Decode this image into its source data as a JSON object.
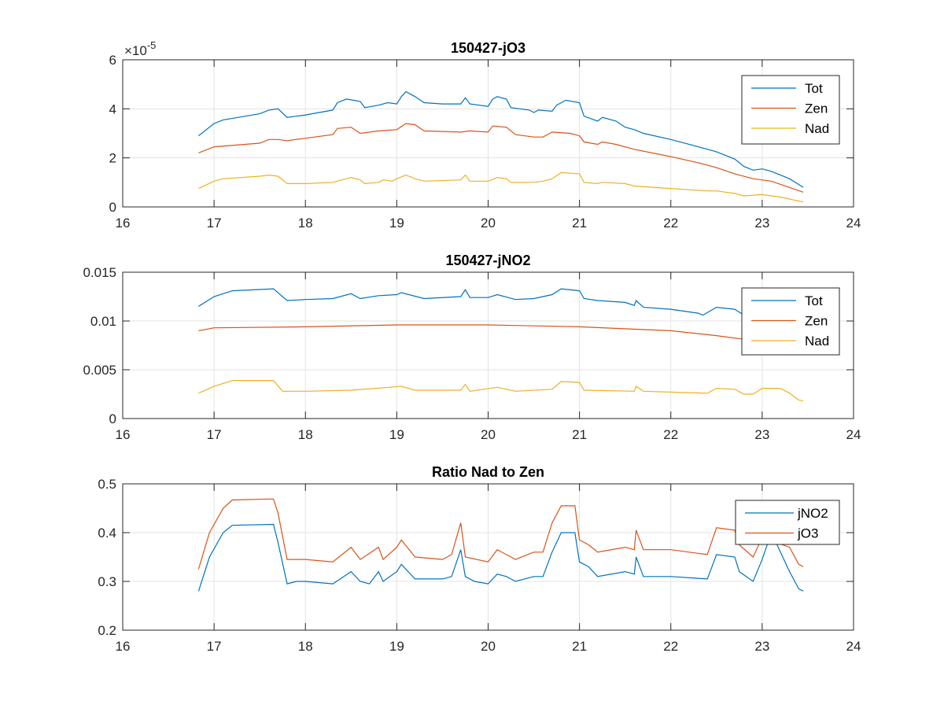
{
  "chart_data": [
    {
      "type": "line",
      "title": "150427-jO3",
      "xlim": [
        16,
        24
      ],
      "ylim": [
        0,
        6
      ],
      "xticks": [
        "16",
        "17",
        "18",
        "19",
        "20",
        "21",
        "22",
        "23",
        "24"
      ],
      "yticks": [
        "0",
        "2",
        "4",
        "6"
      ],
      "ytick_values": [
        0,
        2,
        4,
        6
      ],
      "exponent_label": "×10",
      "exponent_value": "-5",
      "grid": true,
      "legend_position": "top-right",
      "series": [
        {
          "name": "Tot",
          "color": "#0072BD",
          "x": [
            16.83,
            17.0,
            17.1,
            17.5,
            17.6,
            17.7,
            17.8,
            17.9,
            18.0,
            18.3,
            18.35,
            18.45,
            18.6,
            18.65,
            18.8,
            18.9,
            19.0,
            19.05,
            19.1,
            19.2,
            19.3,
            19.5,
            19.7,
            19.75,
            19.8,
            20.0,
            20.05,
            20.1,
            20.2,
            20.25,
            20.45,
            20.5,
            20.55,
            20.7,
            20.75,
            20.85,
            21.0,
            21.05,
            21.2,
            21.25,
            21.4,
            21.5,
            21.6,
            21.7,
            22.0,
            22.3,
            22.45,
            22.5,
            22.7,
            22.8,
            22.9,
            23.0,
            23.1,
            23.3,
            23.45
          ],
          "y": [
            2.9,
            3.4,
            3.55,
            3.8,
            3.95,
            4.0,
            3.65,
            3.7,
            3.75,
            3.95,
            4.25,
            4.4,
            4.3,
            4.05,
            4.15,
            4.25,
            4.2,
            4.5,
            4.7,
            4.5,
            4.25,
            4.2,
            4.2,
            4.45,
            4.2,
            4.1,
            4.4,
            4.5,
            4.4,
            4.05,
            3.95,
            3.85,
            3.95,
            3.9,
            4.15,
            4.35,
            4.25,
            3.7,
            3.5,
            3.65,
            3.5,
            3.25,
            3.15,
            3.0,
            2.75,
            2.45,
            2.3,
            2.25,
            1.95,
            1.65,
            1.5,
            1.55,
            1.45,
            1.15,
            0.8
          ]
        },
        {
          "name": "Zen",
          "color": "#D95319",
          "x": [
            16.83,
            17.0,
            17.5,
            17.6,
            17.7,
            17.8,
            18.0,
            18.3,
            18.35,
            18.5,
            18.6,
            18.8,
            19.0,
            19.1,
            19.2,
            19.3,
            19.7,
            19.8,
            20.0,
            20.05,
            20.2,
            20.3,
            20.5,
            20.6,
            20.7,
            20.9,
            21.0,
            21.05,
            21.2,
            21.25,
            21.4,
            21.6,
            22.0,
            22.3,
            22.5,
            22.7,
            22.9,
            23.1,
            23.45
          ],
          "y": [
            2.2,
            2.45,
            2.6,
            2.75,
            2.75,
            2.7,
            2.8,
            2.95,
            3.2,
            3.25,
            3.0,
            3.1,
            3.15,
            3.4,
            3.35,
            3.1,
            3.05,
            3.1,
            3.05,
            3.3,
            3.25,
            2.95,
            2.85,
            2.85,
            3.05,
            3.0,
            2.9,
            2.65,
            2.55,
            2.65,
            2.55,
            2.35,
            2.05,
            1.8,
            1.6,
            1.35,
            1.15,
            1.05,
            0.6
          ]
        },
        {
          "name": "Nad",
          "color": "#EDB120",
          "x": [
            16.83,
            17.0,
            17.1,
            17.5,
            17.6,
            17.7,
            17.8,
            18.0,
            18.3,
            18.5,
            18.6,
            18.65,
            18.8,
            18.85,
            18.95,
            19.0,
            19.1,
            19.2,
            19.3,
            19.7,
            19.75,
            19.8,
            20.0,
            20.1,
            20.2,
            20.25,
            20.5,
            20.6,
            20.7,
            20.8,
            21.0,
            21.05,
            21.2,
            21.25,
            21.5,
            21.6,
            22.0,
            22.4,
            22.5,
            22.7,
            22.8,
            23.0,
            23.2,
            23.45
          ],
          "y": [
            0.75,
            1.05,
            1.15,
            1.25,
            1.3,
            1.25,
            0.95,
            0.95,
            1.0,
            1.2,
            1.1,
            0.95,
            1.0,
            1.1,
            1.05,
            1.15,
            1.3,
            1.15,
            1.05,
            1.1,
            1.3,
            1.05,
            1.05,
            1.2,
            1.15,
            1.0,
            1.0,
            1.05,
            1.15,
            1.4,
            1.35,
            1.0,
            0.95,
            1.0,
            0.95,
            0.85,
            0.75,
            0.65,
            0.65,
            0.55,
            0.45,
            0.5,
            0.4,
            0.2
          ]
        }
      ]
    },
    {
      "type": "line",
      "title": "150427-jNO2",
      "xlim": [
        16,
        24
      ],
      "ylim": [
        0,
        0.015
      ],
      "xticks": [
        "16",
        "17",
        "18",
        "19",
        "20",
        "21",
        "22",
        "23",
        "24"
      ],
      "yticks": [
        "0",
        "0.005",
        "0.01",
        "0.015"
      ],
      "ytick_values": [
        0,
        0.005,
        0.01,
        0.015
      ],
      "grid": true,
      "legend_position": "top-right",
      "series": [
        {
          "name": "Tot",
          "color": "#0072BD",
          "x": [
            16.83,
            17.0,
            17.2,
            17.65,
            17.8,
            18.0,
            18.3,
            18.5,
            18.6,
            18.8,
            19.0,
            19.05,
            19.3,
            19.7,
            19.75,
            19.8,
            20.0,
            20.1,
            20.3,
            20.5,
            20.7,
            20.8,
            21.0,
            21.05,
            21.2,
            21.5,
            21.6,
            21.62,
            21.7,
            22.0,
            22.3,
            22.35,
            22.5,
            22.7,
            22.8,
            23.0,
            23.2,
            23.45
          ],
          "y": [
            0.0115,
            0.0125,
            0.0131,
            0.0133,
            0.0121,
            0.0122,
            0.0123,
            0.0128,
            0.0123,
            0.0126,
            0.0127,
            0.0129,
            0.0123,
            0.0125,
            0.0132,
            0.0124,
            0.0124,
            0.0127,
            0.0122,
            0.0123,
            0.0127,
            0.0133,
            0.0131,
            0.0123,
            0.0121,
            0.0119,
            0.0116,
            0.0121,
            0.0114,
            0.0112,
            0.0108,
            0.0106,
            0.0114,
            0.0112,
            0.0106,
            0.01,
            0.0098,
            0.0095
          ]
        },
        {
          "name": "Zen",
          "color": "#D95319",
          "x": [
            16.83,
            17.0,
            18.0,
            19.0,
            20.0,
            20.5,
            21.0,
            21.5,
            22.0,
            22.5,
            22.9,
            23.2,
            23.45
          ],
          "y": [
            0.009,
            0.0093,
            0.0094,
            0.0096,
            0.0096,
            0.0095,
            0.0094,
            0.0092,
            0.009,
            0.0085,
            0.008,
            0.0078,
            0.0077
          ]
        },
        {
          "name": "Nad",
          "color": "#EDB120",
          "x": [
            16.83,
            17.0,
            17.2,
            17.65,
            17.75,
            18.0,
            18.5,
            19.05,
            19.2,
            19.7,
            19.75,
            19.8,
            20.1,
            20.3,
            20.7,
            20.8,
            21.0,
            21.05,
            21.6,
            21.62,
            21.7,
            22.4,
            22.5,
            22.7,
            22.8,
            22.9,
            23.0,
            23.2,
            23.3,
            23.4,
            23.45
          ],
          "y": [
            0.0026,
            0.0033,
            0.0039,
            0.0039,
            0.0028,
            0.0028,
            0.0029,
            0.0033,
            0.0029,
            0.0029,
            0.0035,
            0.0028,
            0.0032,
            0.0028,
            0.003,
            0.0038,
            0.0037,
            0.0029,
            0.0028,
            0.0033,
            0.0028,
            0.0026,
            0.0031,
            0.003,
            0.0025,
            0.0025,
            0.0031,
            0.0031,
            0.0026,
            0.0019,
            0.0018
          ]
        }
      ]
    },
    {
      "type": "line",
      "title": "Ratio Nad to Zen",
      "xlim": [
        16,
        24
      ],
      "ylim": [
        0.2,
        0.5
      ],
      "xticks": [
        "16",
        "17",
        "18",
        "19",
        "20",
        "21",
        "22",
        "23",
        "24"
      ],
      "yticks": [
        "0.2",
        "0.3",
        "0.4",
        "0.5"
      ],
      "ytick_values": [
        0.2,
        0.3,
        0.4,
        0.5
      ],
      "grid": true,
      "legend_position": "top-right",
      "series": [
        {
          "name": "jNO2",
          "color": "#0072BD",
          "x": [
            16.83,
            16.95,
            17.1,
            17.2,
            17.65,
            17.7,
            17.8,
            17.9,
            18.0,
            18.3,
            18.5,
            18.6,
            18.7,
            18.8,
            18.85,
            19.0,
            19.05,
            19.2,
            19.5,
            19.6,
            19.7,
            19.75,
            19.85,
            20.0,
            20.1,
            20.2,
            20.3,
            20.5,
            20.6,
            20.7,
            20.8,
            20.95,
            21.0,
            21.1,
            21.2,
            21.5,
            21.6,
            21.62,
            21.7,
            22.0,
            22.4,
            22.5,
            22.7,
            22.75,
            22.9,
            23.0,
            23.1,
            23.3,
            23.4,
            23.45
          ],
          "y": [
            0.28,
            0.35,
            0.4,
            0.415,
            0.417,
            0.38,
            0.295,
            0.3,
            0.3,
            0.295,
            0.32,
            0.3,
            0.295,
            0.32,
            0.3,
            0.32,
            0.335,
            0.305,
            0.305,
            0.31,
            0.365,
            0.31,
            0.3,
            0.295,
            0.315,
            0.31,
            0.3,
            0.31,
            0.31,
            0.36,
            0.4,
            0.4,
            0.34,
            0.33,
            0.31,
            0.32,
            0.315,
            0.35,
            0.31,
            0.31,
            0.305,
            0.355,
            0.35,
            0.32,
            0.3,
            0.345,
            0.4,
            0.32,
            0.285,
            0.28
          ]
        },
        {
          "name": "jO3",
          "color": "#D95319",
          "x": [
            16.83,
            16.95,
            17.1,
            17.2,
            17.65,
            17.7,
            17.8,
            18.0,
            18.3,
            18.5,
            18.6,
            18.8,
            18.85,
            19.0,
            19.05,
            19.2,
            19.5,
            19.6,
            19.7,
            19.75,
            20.0,
            20.1,
            20.3,
            20.5,
            20.6,
            20.7,
            20.8,
            20.95,
            21.0,
            21.1,
            21.2,
            21.5,
            21.6,
            21.62,
            21.7,
            22.0,
            22.4,
            22.5,
            22.7,
            22.75,
            22.9,
            23.0,
            23.3,
            23.4,
            23.45
          ],
          "y": [
            0.325,
            0.4,
            0.45,
            0.467,
            0.469,
            0.44,
            0.345,
            0.345,
            0.34,
            0.37,
            0.345,
            0.37,
            0.345,
            0.37,
            0.385,
            0.35,
            0.345,
            0.355,
            0.42,
            0.35,
            0.34,
            0.365,
            0.345,
            0.36,
            0.36,
            0.42,
            0.455,
            0.455,
            0.385,
            0.375,
            0.36,
            0.37,
            0.365,
            0.405,
            0.365,
            0.365,
            0.355,
            0.41,
            0.405,
            0.375,
            0.35,
            0.39,
            0.37,
            0.335,
            0.33
          ]
        }
      ]
    }
  ]
}
